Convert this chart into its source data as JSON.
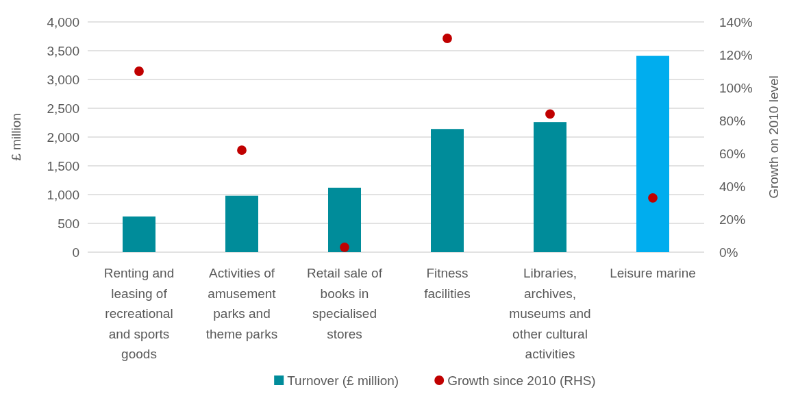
{
  "chart_data": {
    "type": "bar",
    "categories": [
      "Renting and leasing of recreational and sports goods",
      "Activities of amusement parks and theme parks",
      "Retail sale of books in specialised stores",
      "Fitness facilities",
      "Libraries, archives, museums and other cultural activities",
      "Leisure marine"
    ],
    "series": [
      {
        "name": "Turnover (£ million)",
        "color": "#008c9a",
        "colors": [
          "#008c9a",
          "#008c9a",
          "#008c9a",
          "#008c9a",
          "#008c9a",
          "#00adee"
        ],
        "values": [
          620,
          980,
          1120,
          2140,
          2260,
          3410
        ]
      },
      {
        "name": "Growth since 2010 (RHS)",
        "type": "scatter",
        "axis": "y2",
        "color": "#c00000",
        "values": [
          110,
          62,
          3,
          130,
          84,
          33
        ]
      }
    ],
    "ylabel": "£ million",
    "y2label": "Growth on 2010 level",
    "ylim": [
      0,
      4000
    ],
    "yticks": [
      0,
      500,
      {
        "value": 1000,
        "label": "1,000"
      },
      {
        "value": 1500,
        "label": "1,500"
      },
      {
        "value": 2000,
        "label": "2,000"
      },
      {
        "value": 2500,
        "label": "2,500"
      },
      {
        "value": 3000,
        "label": "3,000"
      },
      {
        "value": 3500,
        "label": "3,500"
      },
      {
        "value": 4000,
        "label": "4,000"
      }
    ],
    "y2lim": [
      0,
      140
    ],
    "y2ticks": [
      {
        "value": 0,
        "label": "0%"
      },
      {
        "value": 20,
        "label": "20%"
      },
      {
        "value": 40,
        "label": "40%"
      },
      {
        "value": 60,
        "label": "60%"
      },
      {
        "value": 80,
        "label": "80%"
      },
      {
        "value": 100,
        "label": "100%"
      },
      {
        "value": 120,
        "label": "120%"
      },
      {
        "value": 140,
        "label": "140%"
      }
    ],
    "grid": "y",
    "legend": "bottom",
    "marker": "circle"
  }
}
